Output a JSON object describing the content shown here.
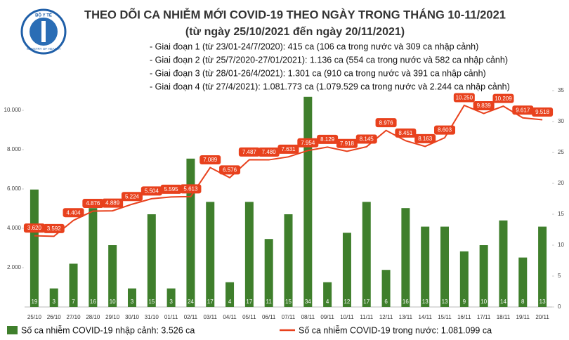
{
  "logo": [
    "BỘ Y TẾ",
    "MINISTRY OF HEALTH"
  ],
  "chart_data": {
    "type": "combo",
    "title": "THEO DÕI CA NHIỄM MỚI COVID-19 THEO NGÀY TRONG THÁNG 10-11/2021",
    "subtitle": "(từ ngày 25/10/2021 đến ngày 20/11/2021)",
    "notes": [
      "- Giai đoạn 1 (từ 23/01-24/7/2020): 415 ca (106 ca trong nước và 309 ca nhập cảnh)",
      "- Giai đoạn 2 (từ 25/7/2020-27/01/2021): 1.136 ca (554 ca trong nước và 582 ca nhập cảnh)",
      "- Giai đoạn 3 (từ 28/01-26/4/2021): 1.301 ca (910 ca trong nước và 391 ca nhập cảnh)",
      "- Giai đoạn 4 (từ 27/4/2021): 1.081.773 ca (1.079.529 ca trong nước và 2.244 ca nhập cảnh)"
    ],
    "categories": [
      "25/10",
      "26/10",
      "27/10",
      "28/10",
      "29/10",
      "30/10",
      "31/10",
      "01/11",
      "02/11",
      "03/11",
      "04/11",
      "05/11",
      "06/11",
      "07/11",
      "08/11",
      "09/11",
      "10/11",
      "11/11",
      "12/11",
      "13/11",
      "14/11",
      "15/11",
      "16/11",
      "17/11",
      "18/11",
      "19/11",
      "20/11"
    ],
    "series": [
      {
        "name": "Số ca nhiễm COVID-19 nhập cảnh: 3.526 ca",
        "type": "bar",
        "axis": "y2",
        "color": "#3f7f2c",
        "values": [
          19,
          3,
          7,
          16,
          10,
          3,
          15,
          3,
          24,
          17,
          4,
          17,
          11,
          15,
          34,
          4,
          12,
          17,
          6,
          16,
          13,
          13,
          9,
          10,
          14,
          8,
          13
        ]
      },
      {
        "name": "Số ca nhiễm COVID-19 trong nước: 1.081.099 ca",
        "type": "line",
        "color": "#e8411d",
        "values": [
          3620,
          3592,
          4404,
          4876,
          4889,
          5224,
          5504,
          5595,
          5613,
          7089,
          6576,
          7487,
          7480,
          7631,
          7954,
          8129,
          7918,
          8145,
          8976,
          8451,
          8163,
          8603,
          10250,
          9839,
          10209,
          9617,
          9518
        ],
        "value_labels": [
          "3.620",
          "3.592",
          "4.404",
          "4.876",
          "4.889",
          "5.224",
          "5.504",
          "5.595",
          "5.613",
          "7.089",
          "6.576",
          "7.487",
          "7.480",
          "7.631",
          "7.954",
          "8.129",
          "7.918",
          "8.145",
          "8.976",
          "8.451",
          "8.163",
          "8.603",
          "10.250",
          "9.839",
          "10.209",
          "9.617",
          "9.518"
        ]
      }
    ],
    "ylim": [
      0,
      11000
    ],
    "yticks": [
      {
        "value": 2000,
        "label": "2.000"
      },
      {
        "value": 4000,
        "label": "4.000"
      },
      {
        "value": 6000,
        "label": "6.000"
      },
      {
        "value": 8000,
        "label": "8.000"
      },
      {
        "value": 10000,
        "label": "10.000"
      }
    ],
    "y2lim": [
      0,
      35
    ],
    "y2ticks": [
      0,
      5,
      10,
      15,
      20,
      25,
      30,
      35
    ]
  }
}
